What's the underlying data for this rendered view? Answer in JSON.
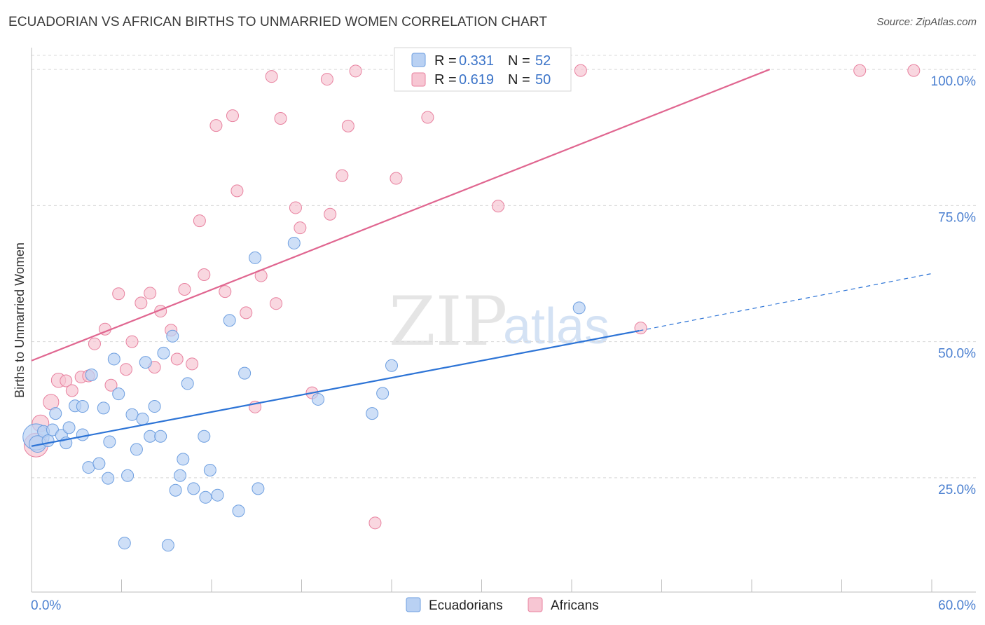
{
  "title": "ECUADORIAN VS AFRICAN BIRTHS TO UNMARRIED WOMEN CORRELATION CHART",
  "source": "Source: ZipAtlas.com",
  "watermark": {
    "zip": "ZIP",
    "atlas": "atlas"
  },
  "colors": {
    "blue_fill": "#b9d1f3",
    "blue_stroke": "#6e9fe0",
    "blue_line": "#2d74d6",
    "pink_fill": "#f7c6d3",
    "pink_stroke": "#e8819f",
    "pink_line": "#e06690",
    "tick_text": "#4a7fd0",
    "grid": "#d8d8d8"
  },
  "legend": [
    {
      "r_label": "R = ",
      "r_value": "0.331",
      "n_label": "N = ",
      "n_value": "52"
    },
    {
      "r_label": "R = ",
      "r_value": "0.619",
      "n_label": "N = ",
      "n_value": "50"
    }
  ],
  "chart_data": {
    "type": "scatter",
    "title": "ECUADORIAN VS AFRICAN BIRTHS TO UNMARRIED WOMEN CORRELATION CHART",
    "xlabel": "",
    "ylabel": "Births to Unmarried Women",
    "xlim": [
      0,
      60
    ],
    "ylim": [
      4,
      104
    ],
    "x_tick_labels": [
      "0.0%",
      "60.0%"
    ],
    "y_ticks": [
      25,
      50,
      75,
      100
    ],
    "y_tick_labels": [
      "25.0%",
      "50.0%",
      "75.0%",
      "100.0%"
    ],
    "legend_position": "top-center",
    "bottom_legend": [
      "Ecuadorians",
      "Africans"
    ],
    "series": [
      {
        "name": "Ecuadorians",
        "r": 0.331,
        "n": 52,
        "trend": {
          "x0": 0,
          "y0": 30.8,
          "x1": 40.5,
          "y1": 52.0,
          "dash_x1": 60,
          "dash_y1": 62.5
        },
        "points": [
          [
            0.3,
            32.5,
            2.2
          ],
          [
            0.4,
            31.2,
            1.4
          ],
          [
            0.8,
            33.5,
            1.0
          ],
          [
            1.1,
            31.8,
            1.0
          ],
          [
            1.4,
            33.8,
            1.0
          ],
          [
            1.6,
            36.8,
            1.0
          ],
          [
            2.0,
            32.8,
            1.0
          ],
          [
            2.3,
            31.4,
            1.0
          ],
          [
            2.5,
            34.2,
            1.0
          ],
          [
            2.9,
            38.2,
            1.0
          ],
          [
            3.4,
            38.1,
            1.0
          ],
          [
            3.4,
            32.9,
            1.0
          ],
          [
            3.8,
            26.9,
            1.0
          ],
          [
            4.5,
            27.6,
            1.0
          ],
          [
            4.0,
            43.9,
            1.0
          ],
          [
            4.8,
            37.8,
            1.0
          ],
          [
            5.1,
            24.9,
            1.0
          ],
          [
            5.2,
            31.6,
            1.0
          ],
          [
            5.5,
            46.8,
            1.0
          ],
          [
            5.8,
            40.4,
            1.0
          ],
          [
            6.2,
            13.0,
            1.0
          ],
          [
            6.4,
            25.4,
            1.0
          ],
          [
            6.7,
            36.6,
            1.0
          ],
          [
            7.0,
            30.2,
            1.0
          ],
          [
            7.4,
            35.8,
            1.0
          ],
          [
            7.6,
            46.2,
            1.0
          ],
          [
            7.9,
            32.6,
            1.0
          ],
          [
            8.2,
            38.1,
            1.0
          ],
          [
            8.6,
            32.6,
            1.0
          ],
          [
            8.8,
            47.9,
            1.0
          ],
          [
            9.1,
            12.6,
            1.0
          ],
          [
            9.4,
            51.0,
            1.0
          ],
          [
            9.6,
            22.7,
            1.0
          ],
          [
            9.9,
            25.4,
            1.0
          ],
          [
            10.1,
            28.4,
            1.0
          ],
          [
            10.4,
            42.3,
            1.0
          ],
          [
            10.8,
            23.0,
            1.0
          ],
          [
            11.5,
            32.6,
            1.0
          ],
          [
            11.6,
            21.4,
            1.0
          ],
          [
            11.9,
            26.4,
            1.0
          ],
          [
            12.4,
            21.8,
            1.0
          ],
          [
            13.2,
            53.9,
            1.0
          ],
          [
            13.8,
            18.9,
            1.0
          ],
          [
            14.2,
            44.2,
            1.0
          ],
          [
            14.9,
            65.4,
            1.0
          ],
          [
            15.1,
            23.0,
            1.0
          ],
          [
            17.5,
            68.1,
            1.0
          ],
          [
            19.1,
            39.4,
            1.0
          ],
          [
            22.7,
            36.8,
            1.0
          ],
          [
            23.4,
            40.5,
            1.0
          ],
          [
            24.0,
            45.6,
            1.0
          ],
          [
            36.5,
            56.2,
            1.0
          ]
        ]
      },
      {
        "name": "Africans",
        "r": 0.619,
        "n": 50,
        "trend": {
          "x0": 0,
          "y0": 46.5,
          "x1": 49.2,
          "y1": 100.0
        },
        "points": [
          [
            0.3,
            31.0,
            2.0
          ],
          [
            0.6,
            35.0,
            1.4
          ],
          [
            1.3,
            38.9,
            1.3
          ],
          [
            1.8,
            42.9,
            1.2
          ],
          [
            2.3,
            42.8,
            1.0
          ],
          [
            2.7,
            41.0,
            1.0
          ],
          [
            3.3,
            43.5,
            1.0
          ],
          [
            3.8,
            43.7,
            1.0
          ],
          [
            4.2,
            49.6,
            1.0
          ],
          [
            4.9,
            52.3,
            1.0
          ],
          [
            5.3,
            42.0,
            1.0
          ],
          [
            5.8,
            58.8,
            1.0
          ],
          [
            6.3,
            44.9,
            1.0
          ],
          [
            6.7,
            50.0,
            1.0
          ],
          [
            7.3,
            57.1,
            1.0
          ],
          [
            7.9,
            58.9,
            1.0
          ],
          [
            8.2,
            45.3,
            1.0
          ],
          [
            8.6,
            55.6,
            1.0
          ],
          [
            9.3,
            52.1,
            1.0
          ],
          [
            9.7,
            46.8,
            1.0
          ],
          [
            10.2,
            59.6,
            1.0
          ],
          [
            10.7,
            45.9,
            1.0
          ],
          [
            11.2,
            72.2,
            1.0
          ],
          [
            11.5,
            62.3,
            1.0
          ],
          [
            12.3,
            89.7,
            1.0
          ],
          [
            12.9,
            59.2,
            1.0
          ],
          [
            13.4,
            91.5,
            1.0
          ],
          [
            13.7,
            77.7,
            1.0
          ],
          [
            14.3,
            55.3,
            1.0
          ],
          [
            14.9,
            38.0,
            1.0
          ],
          [
            15.3,
            62.1,
            1.0
          ],
          [
            16.0,
            98.7,
            1.0
          ],
          [
            16.3,
            57.0,
            1.0
          ],
          [
            16.6,
            91.0,
            1.0
          ],
          [
            17.6,
            74.6,
            1.0
          ],
          [
            17.9,
            70.9,
            1.0
          ],
          [
            18.7,
            40.6,
            1.0
          ],
          [
            19.7,
            98.2,
            1.0
          ],
          [
            19.9,
            73.4,
            1.0
          ],
          [
            20.7,
            80.5,
            1.0
          ],
          [
            21.1,
            89.6,
            1.0
          ],
          [
            21.6,
            99.7,
            1.0
          ],
          [
            22.9,
            16.7,
            1.0
          ],
          [
            24.3,
            80.0,
            1.0
          ],
          [
            26.4,
            91.2,
            1.0
          ],
          [
            31.1,
            74.9,
            1.0
          ],
          [
            36.6,
            99.8,
            1.0
          ],
          [
            40.6,
            52.5,
            1.0
          ],
          [
            55.2,
            99.8,
            1.0
          ],
          [
            58.8,
            99.8,
            1.0
          ]
        ]
      }
    ]
  }
}
